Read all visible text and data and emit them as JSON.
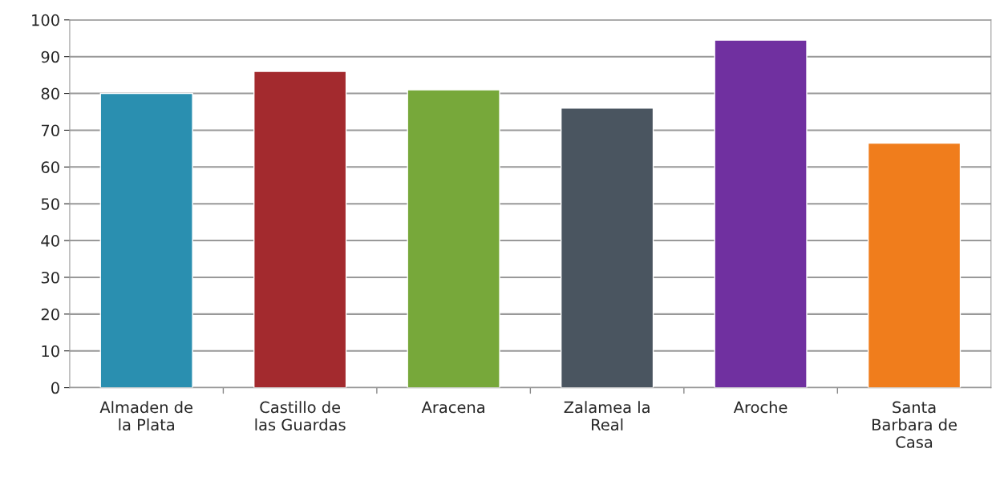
{
  "chart_data": {
    "type": "bar",
    "categories": [
      "Almaden de\nla Plata",
      "Castillo de\nlas Guardas",
      "Aracena",
      "Zalamea la\nReal",
      "Aroche",
      "Santa\nBarbara de\nCasa"
    ],
    "values": [
      80,
      86,
      81,
      76,
      94.5,
      66.5
    ],
    "colors": [
      "#2a8fb0",
      "#a32a2e",
      "#77a83a",
      "#4a5560",
      "#7030a0",
      "#f07d1c"
    ],
    "ylim": [
      0,
      100
    ],
    "yticks": [
      0,
      10,
      20,
      30,
      40,
      50,
      60,
      70,
      80,
      90,
      100
    ],
    "grid": "y"
  }
}
